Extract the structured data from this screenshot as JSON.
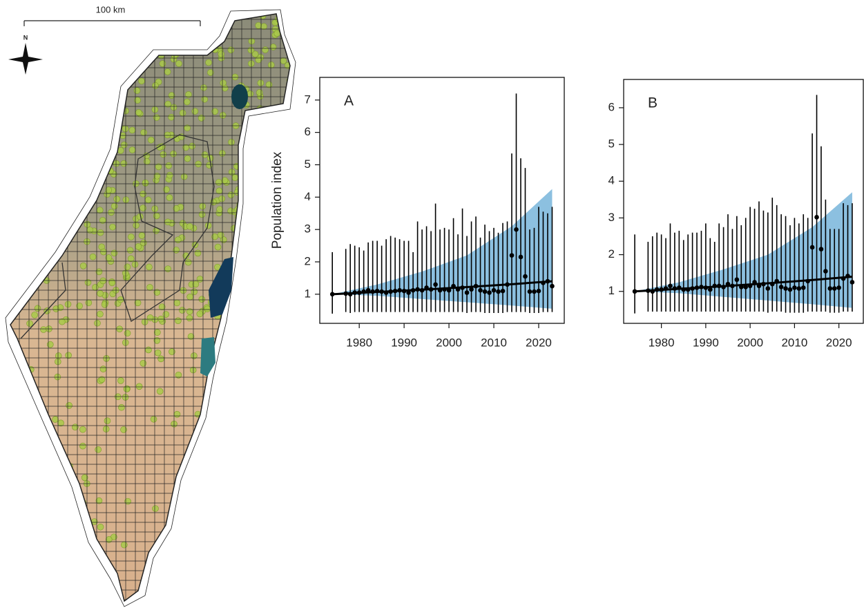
{
  "map": {
    "scale_label": "100 km",
    "north_label": "N"
  },
  "chart_data": [
    {
      "type": "errorbar",
      "panel_label": "A",
      "ylabel": "Population index",
      "color": "#000000",
      "x": [
        1974,
        1977,
        1978,
        1979,
        1980,
        1981,
        1982,
        1983,
        1984,
        1985,
        1986,
        1987,
        1988,
        1989,
        1990,
        1991,
        1992,
        1993,
        1994,
        1995,
        1996,
        1997,
        1998,
        1999,
        2000,
        2001,
        2002,
        2003,
        2004,
        2005,
        2006,
        2007,
        2008,
        2009,
        2010,
        2011,
        2012,
        2013,
        2014,
        2015,
        2016,
        2017,
        2018,
        2019,
        2020,
        2021,
        2022,
        2023
      ],
      "values": [
        1.0,
        1.02,
        1.0,
        1.05,
        1.05,
        1.08,
        1.12,
        1.08,
        1.1,
        1.08,
        1.05,
        1.08,
        1.1,
        1.12,
        1.1,
        1.05,
        1.12,
        1.15,
        1.12,
        1.2,
        1.15,
        1.3,
        1.12,
        1.15,
        1.12,
        1.25,
        1.15,
        1.2,
        1.05,
        1.15,
        1.25,
        1.12,
        1.08,
        1.05,
        1.12,
        1.08,
        1.1,
        1.3,
        2.2,
        3.0,
        2.15,
        1.55,
        1.08,
        1.08,
        1.1,
        1.35,
        1.4,
        1.25
      ],
      "lower": [
        0.4,
        0.45,
        0.42,
        0.45,
        0.45,
        0.45,
        0.45,
        0.45,
        0.45,
        0.45,
        0.45,
        0.45,
        0.45,
        0.45,
        0.45,
        0.45,
        0.45,
        0.45,
        0.45,
        0.45,
        0.45,
        0.45,
        0.45,
        0.45,
        0.45,
        0.45,
        0.45,
        0.45,
        0.42,
        0.45,
        0.45,
        0.45,
        0.42,
        0.42,
        0.42,
        0.42,
        0.42,
        0.45,
        0.45,
        0.45,
        0.45,
        0.45,
        0.42,
        0.42,
        0.42,
        0.45,
        0.45,
        0.45
      ],
      "upper": [
        2.3,
        2.4,
        2.55,
        2.5,
        2.45,
        2.35,
        2.6,
        2.65,
        2.65,
        2.5,
        2.7,
        2.8,
        2.75,
        2.7,
        2.65,
        2.65,
        2.3,
        3.25,
        3.0,
        3.1,
        2.95,
        3.8,
        3.0,
        3.05,
        3.0,
        3.35,
        2.85,
        3.65,
        2.8,
        3.25,
        3.4,
        2.75,
        3.15,
        2.95,
        3.05,
        2.9,
        3.2,
        3.25,
        5.35,
        7.2,
        5.2,
        4.9,
        3.0,
        3.05,
        3.7,
        3.55,
        3.5,
        3.7
      ],
      "trend": {
        "x": [
          1974,
          1984,
          1994,
          2004,
          2014,
          2023
        ],
        "values": [
          1.0,
          1.07,
          1.14,
          1.22,
          1.31,
          1.4
        ],
        "lower": [
          1.0,
          0.95,
          0.85,
          0.75,
          0.65,
          0.55
        ],
        "upper": [
          1.0,
          1.3,
          1.7,
          2.2,
          3.1,
          4.25
        ],
        "color": "#000000",
        "band_color": "#8cc0e0"
      },
      "xlim": [
        1971.2,
        2025.7
      ],
      "ylim": [
        0.1,
        7.7
      ],
      "xticks": [
        1980,
        1990,
        2000,
        2010,
        2020
      ],
      "yticks": [
        1,
        2,
        3,
        4,
        5,
        6,
        7
      ]
    },
    {
      "type": "errorbar",
      "panel_label": "B",
      "color": "#000000",
      "x": [
        1974,
        1977,
        1978,
        1979,
        1980,
        1981,
        1982,
        1983,
        1984,
        1985,
        1986,
        1987,
        1988,
        1989,
        1990,
        1991,
        1992,
        1993,
        1994,
        1995,
        1996,
        1997,
        1998,
        1999,
        2000,
        2001,
        2002,
        2003,
        2004,
        2005,
        2006,
        2007,
        2008,
        2009,
        2010,
        2011,
        2012,
        2013,
        2014,
        2015,
        2016,
        2017,
        2018,
        2019,
        2020,
        2021,
        2022,
        2023
      ],
      "values": [
        1.0,
        1.02,
        1.0,
        1.05,
        1.05,
        1.08,
        1.15,
        1.08,
        1.1,
        1.05,
        1.05,
        1.08,
        1.1,
        1.12,
        1.1,
        1.05,
        1.15,
        1.15,
        1.12,
        1.2,
        1.15,
        1.32,
        1.12,
        1.12,
        1.15,
        1.25,
        1.15,
        1.2,
        1.08,
        1.2,
        1.28,
        1.12,
        1.08,
        1.05,
        1.1,
        1.08,
        1.1,
        1.28,
        2.2,
        3.02,
        2.15,
        1.55,
        1.08,
        1.08,
        1.1,
        1.35,
        1.42,
        1.25
      ],
      "lower": [
        0.4,
        0.45,
        0.45,
        0.45,
        0.45,
        0.45,
        0.45,
        0.45,
        0.45,
        0.45,
        0.45,
        0.45,
        0.45,
        0.45,
        0.45,
        0.45,
        0.45,
        0.45,
        0.45,
        0.45,
        0.45,
        0.45,
        0.45,
        0.45,
        0.45,
        0.45,
        0.45,
        0.45,
        0.42,
        0.45,
        0.45,
        0.45,
        0.42,
        0.42,
        0.42,
        0.42,
        0.42,
        0.45,
        0.45,
        0.45,
        0.45,
        0.45,
        0.42,
        0.42,
        0.42,
        0.45,
        0.45,
        0.45
      ],
      "upper": [
        2.55,
        2.35,
        2.5,
        2.6,
        2.55,
        2.45,
        2.85,
        2.6,
        2.65,
        2.4,
        2.55,
        2.6,
        2.6,
        2.65,
        2.85,
        2.45,
        2.35,
        2.85,
        2.75,
        3.1,
        2.7,
        3.05,
        2.8,
        3.0,
        3.3,
        3.25,
        3.45,
        3.2,
        3.15,
        3.55,
        3.35,
        3.1,
        3.05,
        2.8,
        3.0,
        2.85,
        3.1,
        3.0,
        5.3,
        6.35,
        4.95,
        3.5,
        2.7,
        2.7,
        2.7,
        3.4,
        3.35,
        3.4
      ],
      "trend": {
        "x": [
          1974,
          1984,
          1994,
          2004,
          2014,
          2023
        ],
        "values": [
          1.0,
          1.07,
          1.14,
          1.22,
          1.31,
          1.4
        ],
        "lower": [
          1.0,
          0.95,
          0.85,
          0.75,
          0.65,
          0.55
        ],
        "upper": [
          1.0,
          1.25,
          1.6,
          2.0,
          2.75,
          3.7
        ],
        "color": "#000000",
        "band_color": "#8cc0e0"
      },
      "xlim": [
        1971.5,
        2025.5
      ],
      "ylim": [
        0.13,
        6.77
      ],
      "xticks": [
        1980,
        1990,
        2000,
        2010,
        2020
      ],
      "yticks": [
        1,
        2,
        3,
        4,
        5,
        6
      ]
    }
  ]
}
